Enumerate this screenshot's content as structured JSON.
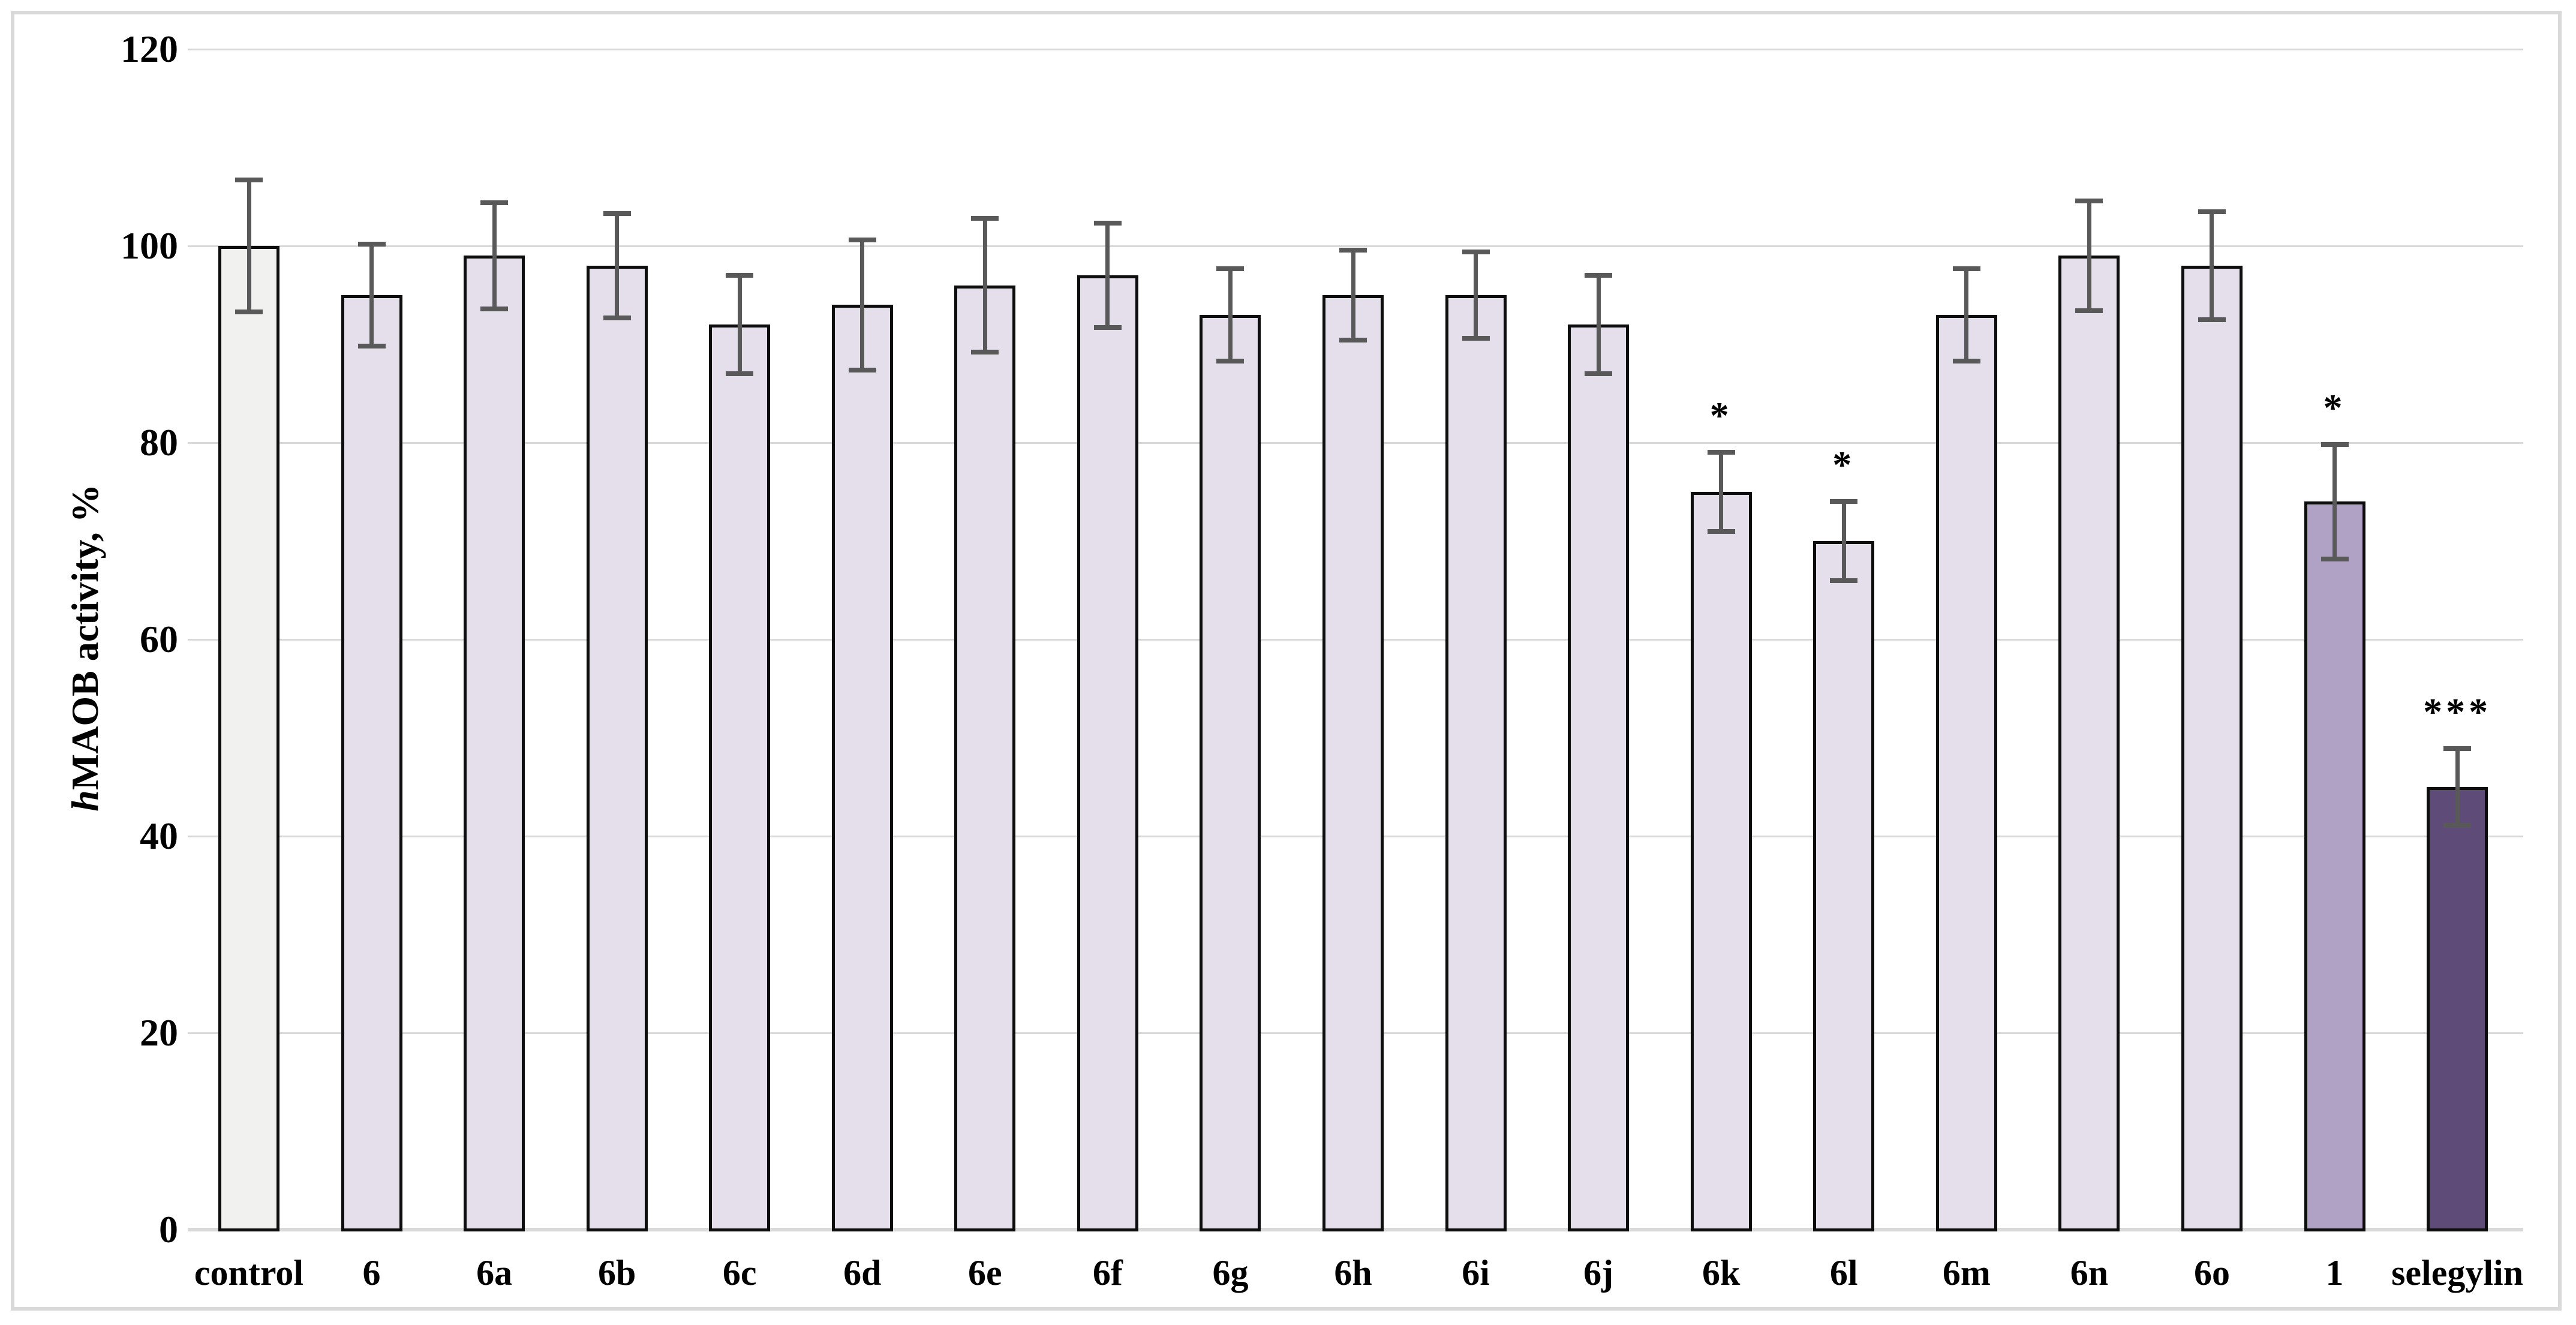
{
  "figure": {
    "frame_color": "#d9d9d9",
    "background": "#ffffff"
  },
  "chart_data": {
    "type": "bar",
    "title": "",
    "xlabel": "",
    "ylabel": "hMAOB activity, %",
    "ylabel_prefix_italic": "h",
    "ylabel_rest": "MAOB activity, %",
    "ylim": [
      0,
      120
    ],
    "ytick_interval": 20,
    "yticks": [
      0,
      20,
      40,
      60,
      80,
      100,
      120
    ],
    "ytick_labels": [
      "0",
      "20",
      "40",
      "60",
      "80",
      "100",
      "120"
    ],
    "grid": true,
    "legend": false,
    "error_bars": true,
    "categories": [
      "control",
      "6",
      "6a",
      "6b",
      "6c",
      "6d",
      "6e",
      "6f",
      "6g",
      "6h",
      "6i",
      "6j",
      "6k",
      "6l",
      "6m",
      "6n",
      "6o",
      "1",
      "selegylin"
    ],
    "values": [
      100,
      95,
      99,
      98,
      92,
      94,
      96,
      97,
      93,
      95,
      95,
      92,
      75,
      70,
      93,
      99,
      98,
      74,
      45
    ],
    "errors": [
      6.7,
      5.2,
      5.4,
      5.3,
      5.0,
      6.6,
      6.8,
      5.3,
      4.7,
      4.6,
      4.4,
      5.0,
      4.0,
      4.0,
      4.7,
      5.6,
      5.5,
      5.8,
      3.9
    ],
    "significance": [
      "",
      "",
      "",
      "",
      "",
      "",
      "",
      "",
      "",
      "",
      "",
      "",
      "*",
      "*",
      "",
      "",
      "",
      "*",
      "***"
    ],
    "colors": {
      "default_bar": "#e4dfea",
      "control_bar": "#f1f1f0",
      "compound_1_bar": "#afa2c5",
      "selegylin_bar": "#5e4b78",
      "bar_border": "#0d0d0d",
      "error_bar": "#595959",
      "gridline": "#d9d9d9",
      "axis_line": "#d9d9d9",
      "text": "#000000"
    },
    "special_fills": {
      "control": "control_bar",
      "1": "compound_1_bar",
      "selegylin": "selegylin_bar"
    }
  }
}
